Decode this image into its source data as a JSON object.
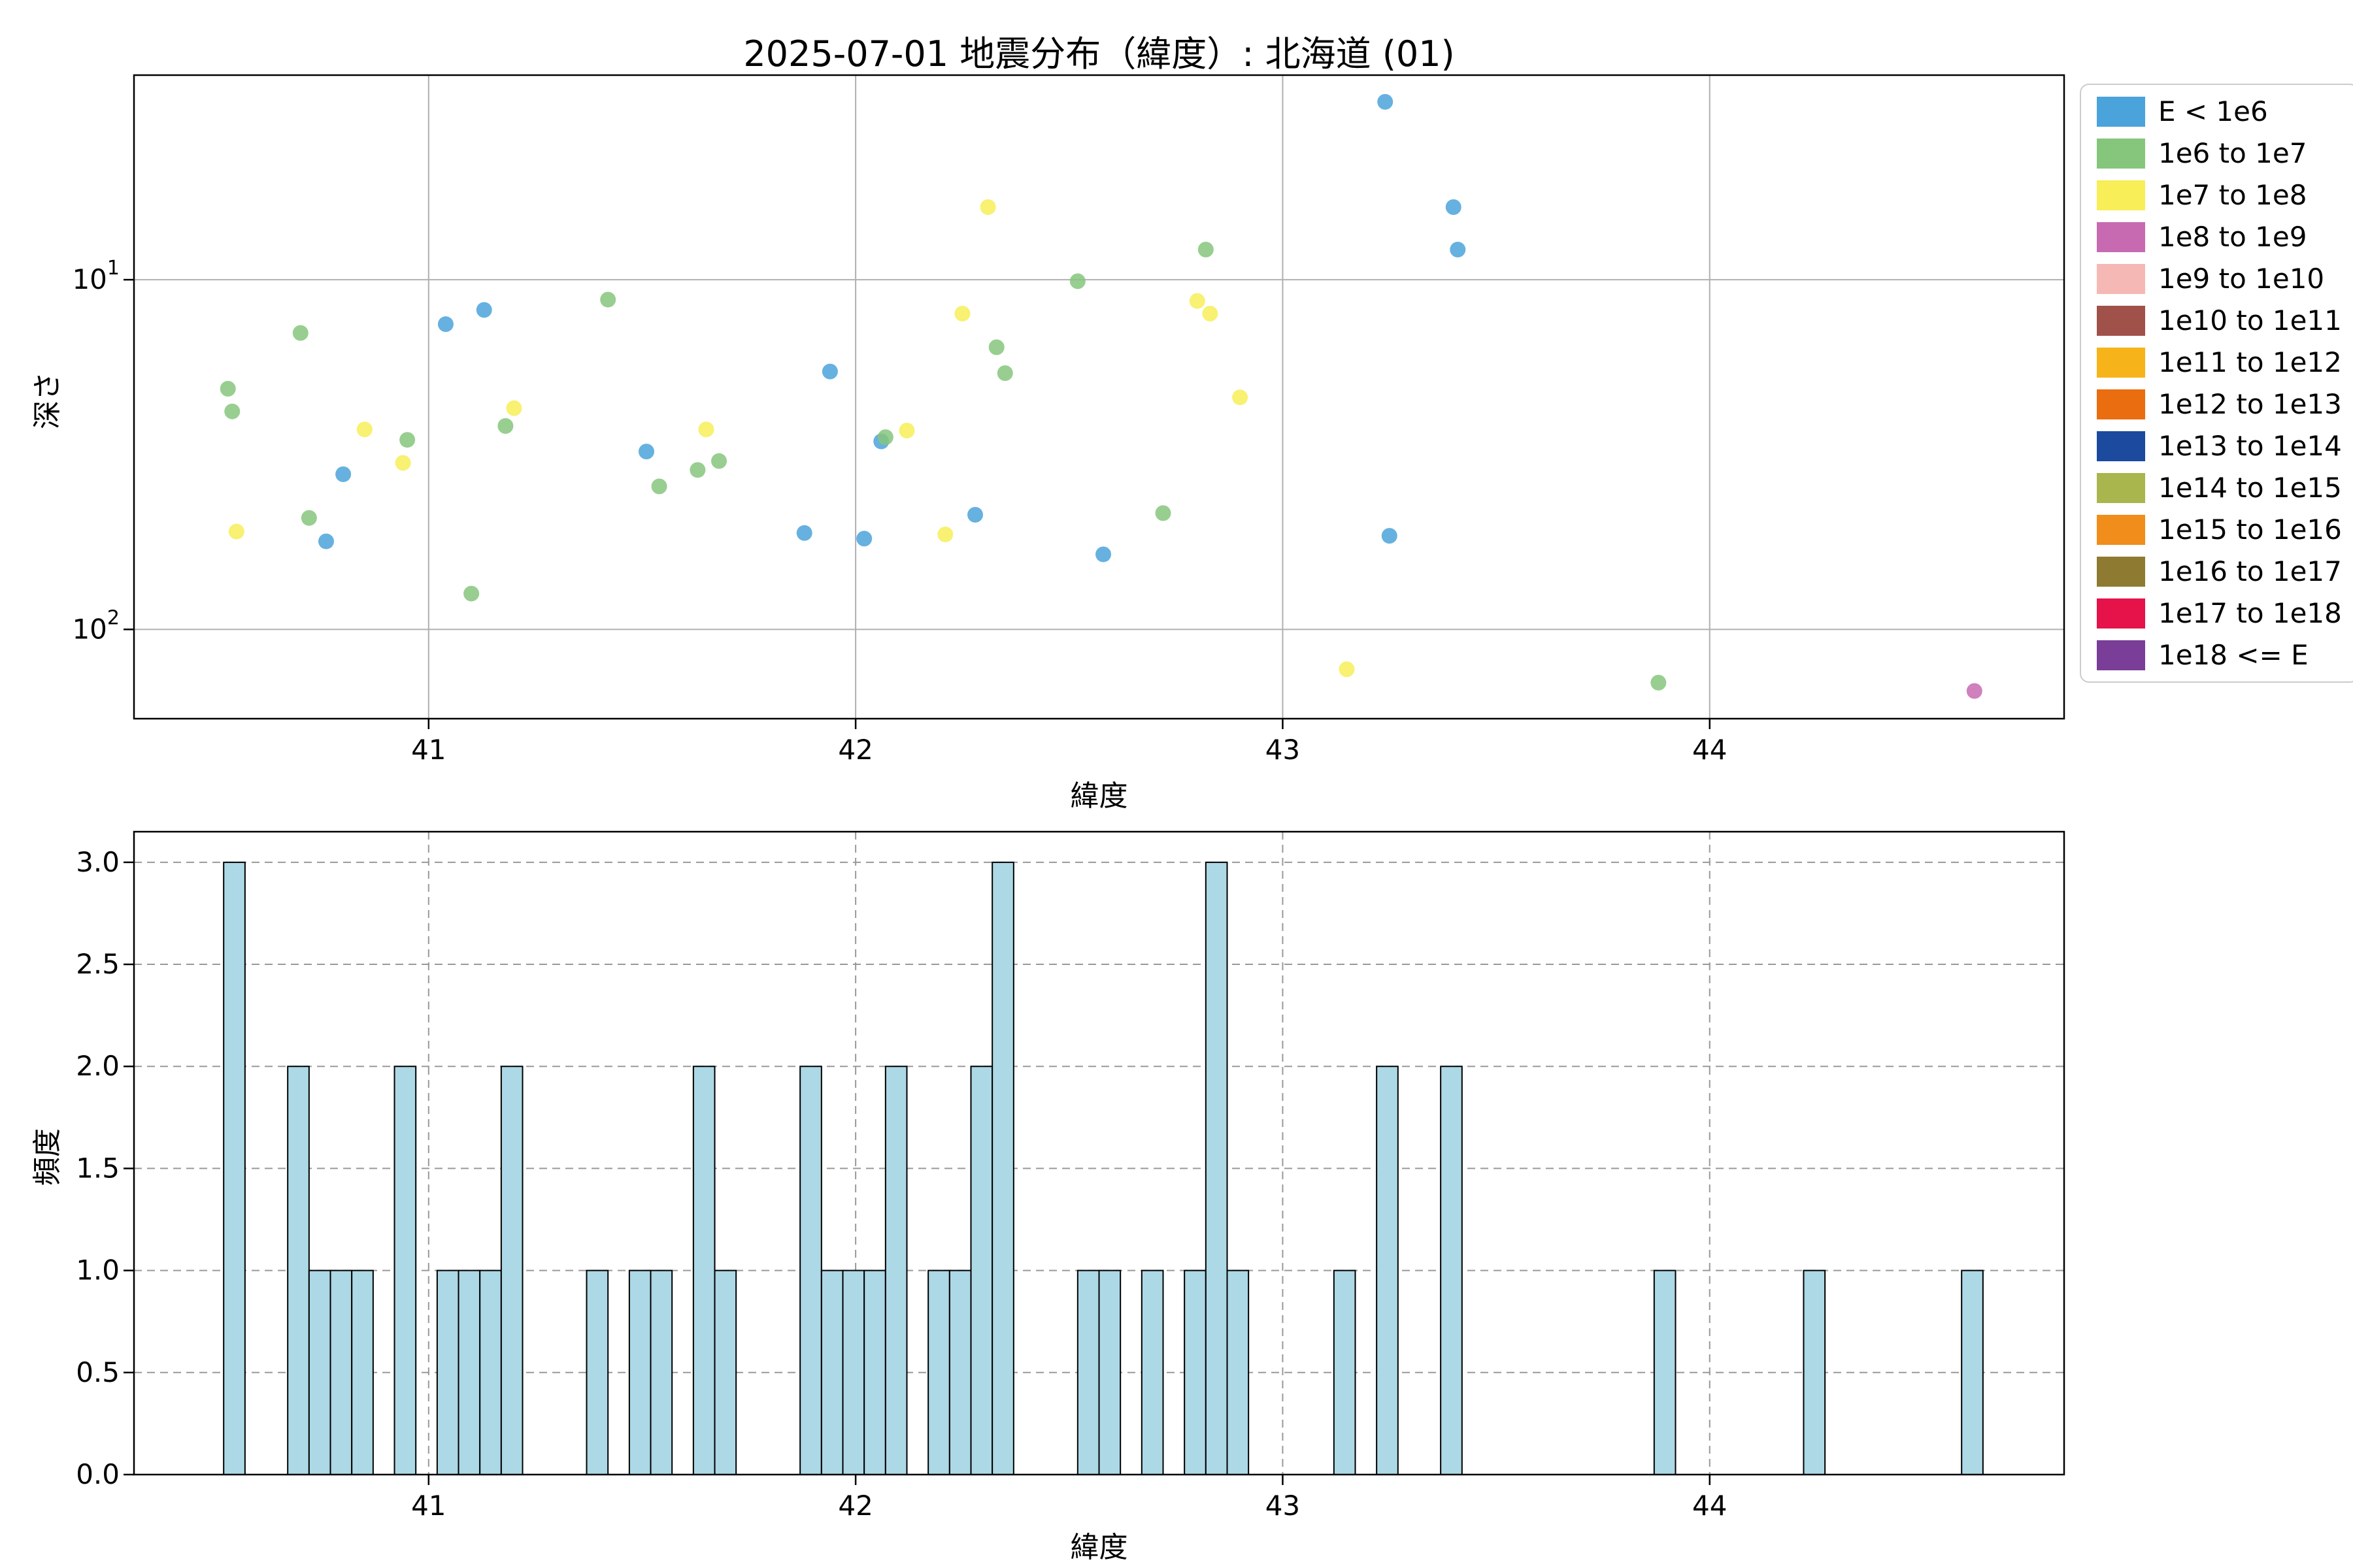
{
  "figure": {
    "title": "2025-07-01 地震分布（緯度）: 北海道 (01)"
  },
  "chart_data": [
    {
      "type": "scatter",
      "title": "2025-07-01 地震分布（緯度）: 北海道 (01)",
      "xlabel": "緯度",
      "ylabel": "深さ",
      "xlim": [
        40.31,
        44.83
      ],
      "ylim": [
        2.6,
        180
      ],
      "y_scale": "log",
      "y_inverted": true,
      "grid": "solid",
      "xticks": [
        41,
        42,
        43,
        44
      ],
      "yticks": [
        {
          "value": 10,
          "base": "10",
          "exp": "1"
        },
        {
          "value": 100,
          "base": "10",
          "exp": "2"
        }
      ],
      "legend": {
        "position": "outside upper right",
        "entries": [
          {
            "label": "E < 1e6",
            "color": "#4ba3db"
          },
          {
            "label": "1e6 to 1e7",
            "color": "#86c67c"
          },
          {
            "label": "1e7 to 1e8",
            "color": "#f7ee58"
          },
          {
            "label": "1e8 to 1e9",
            "color": "#c76ab2"
          },
          {
            "label": "1e9 to 1e10",
            "color": "#f6b8b4"
          },
          {
            "label": "1e10 to 1e11",
            "color": "#a0524a"
          },
          {
            "label": "1e11 to 1e12",
            "color": "#f6b41a"
          },
          {
            "label": "1e12 to 1e13",
            "color": "#ea6d10"
          },
          {
            "label": "1e13 to 1e14",
            "color": "#1b4a9e"
          },
          {
            "label": "1e14 to 1e15",
            "color": "#a9b64e"
          },
          {
            "label": "1e15 to 1e16",
            "color": "#f18d1b"
          },
          {
            "label": "1e16 to 1e17",
            "color": "#8e7b31"
          },
          {
            "label": "1e17 to 1e18",
            "color": "#e5134a"
          },
          {
            "label": "1e18 <= E",
            "color": "#7b3e98"
          }
        ]
      },
      "series": [
        {
          "name": "E < 1e6",
          "color": "#4ba3db",
          "points": [
            [
              40.76,
              56
            ],
            [
              40.8,
              36
            ],
            [
              41.04,
              13.4
            ],
            [
              41.13,
              12.2
            ],
            [
              41.51,
              31
            ],
            [
              41.88,
              53
            ],
            [
              41.94,
              18.3
            ],
            [
              42.02,
              55
            ],
            [
              42.06,
              29
            ],
            [
              42.28,
              47
            ],
            [
              42.58,
              61
            ],
            [
              43.24,
              3.1
            ],
            [
              43.25,
              54
            ],
            [
              43.4,
              6.2
            ],
            [
              43.41,
              8.2
            ]
          ]
        },
        {
          "name": "1e6 to 1e7",
          "color": "#86c67c",
          "points": [
            [
              40.53,
              20.5
            ],
            [
              40.54,
              23.8
            ],
            [
              40.7,
              14.2
            ],
            [
              40.72,
              48
            ],
            [
              40.95,
              28.7
            ],
            [
              41.1,
              79
            ],
            [
              41.18,
              26.2
            ],
            [
              41.42,
              11.4
            ],
            [
              41.54,
              39
            ],
            [
              41.63,
              35
            ],
            [
              41.68,
              33
            ],
            [
              42.07,
              28.2
            ],
            [
              42.33,
              15.6
            ],
            [
              42.35,
              18.5
            ],
            [
              42.52,
              10.1
            ],
            [
              42.72,
              46.5
            ],
            [
              42.82,
              8.2
            ],
            [
              43.88,
              142
            ]
          ]
        },
        {
          "name": "1e7 to 1e8",
          "color": "#f7ee58",
          "points": [
            [
              40.55,
              52.5
            ],
            [
              40.85,
              26.8
            ],
            [
              40.94,
              33.4
            ],
            [
              41.2,
              23.3
            ],
            [
              41.65,
              26.8
            ],
            [
              42.12,
              27
            ],
            [
              42.21,
              53.5
            ],
            [
              42.25,
              12.5
            ],
            [
              42.31,
              6.2
            ],
            [
              42.8,
              11.5
            ],
            [
              42.83,
              12.5
            ],
            [
              42.9,
              21.7
            ],
            [
              43.15,
              130
            ]
          ]
        },
        {
          "name": "1e8 to 1e9",
          "color": "#c76ab2",
          "points": [
            [
              44.62,
              150
            ]
          ]
        }
      ]
    },
    {
      "type": "histogram",
      "xlabel": "緯度",
      "ylabel": "頻度",
      "xlim": [
        40.31,
        44.83
      ],
      "ylim": [
        0,
        3.15
      ],
      "grid": "dashed",
      "xticks": [
        41,
        42,
        43,
        44
      ],
      "yticks": [
        0,
        0.5,
        1,
        1.5,
        2,
        2.5,
        3
      ],
      "ytick_labels": [
        "0.0",
        "0.5",
        "1.0",
        "1.5",
        "2.0",
        "2.5",
        "3.0"
      ],
      "bar_fill": "#add8e6",
      "bar_edge": "#000000",
      "bin_width": 0.05,
      "bins": [
        [
          40.52,
          3
        ],
        [
          40.67,
          2
        ],
        [
          40.72,
          1
        ],
        [
          40.77,
          1
        ],
        [
          40.82,
          1
        ],
        [
          40.92,
          2
        ],
        [
          41.02,
          1
        ],
        [
          41.07,
          1
        ],
        [
          41.12,
          1
        ],
        [
          41.17,
          2
        ],
        [
          41.37,
          1
        ],
        [
          41.47,
          1
        ],
        [
          41.52,
          1
        ],
        [
          41.62,
          2
        ],
        [
          41.67,
          1
        ],
        [
          41.87,
          2
        ],
        [
          41.92,
          1
        ],
        [
          41.97,
          1
        ],
        [
          42.02,
          1
        ],
        [
          42.07,
          2
        ],
        [
          42.17,
          1
        ],
        [
          42.22,
          1
        ],
        [
          42.27,
          2
        ],
        [
          42.32,
          3
        ],
        [
          42.52,
          1
        ],
        [
          42.57,
          1
        ],
        [
          42.67,
          1
        ],
        [
          42.77,
          1
        ],
        [
          42.82,
          3
        ],
        [
          42.87,
          1
        ],
        [
          43.12,
          1
        ],
        [
          43.22,
          2
        ],
        [
          43.37,
          2
        ],
        [
          43.87,
          1
        ],
        [
          44.22,
          1
        ],
        [
          44.59,
          1
        ]
      ]
    }
  ],
  "style": {
    "grid_color_solid": "#b0b0b0",
    "grid_color_dashed": "#999999",
    "frame_color": "#000000",
    "background": "#ffffff"
  }
}
